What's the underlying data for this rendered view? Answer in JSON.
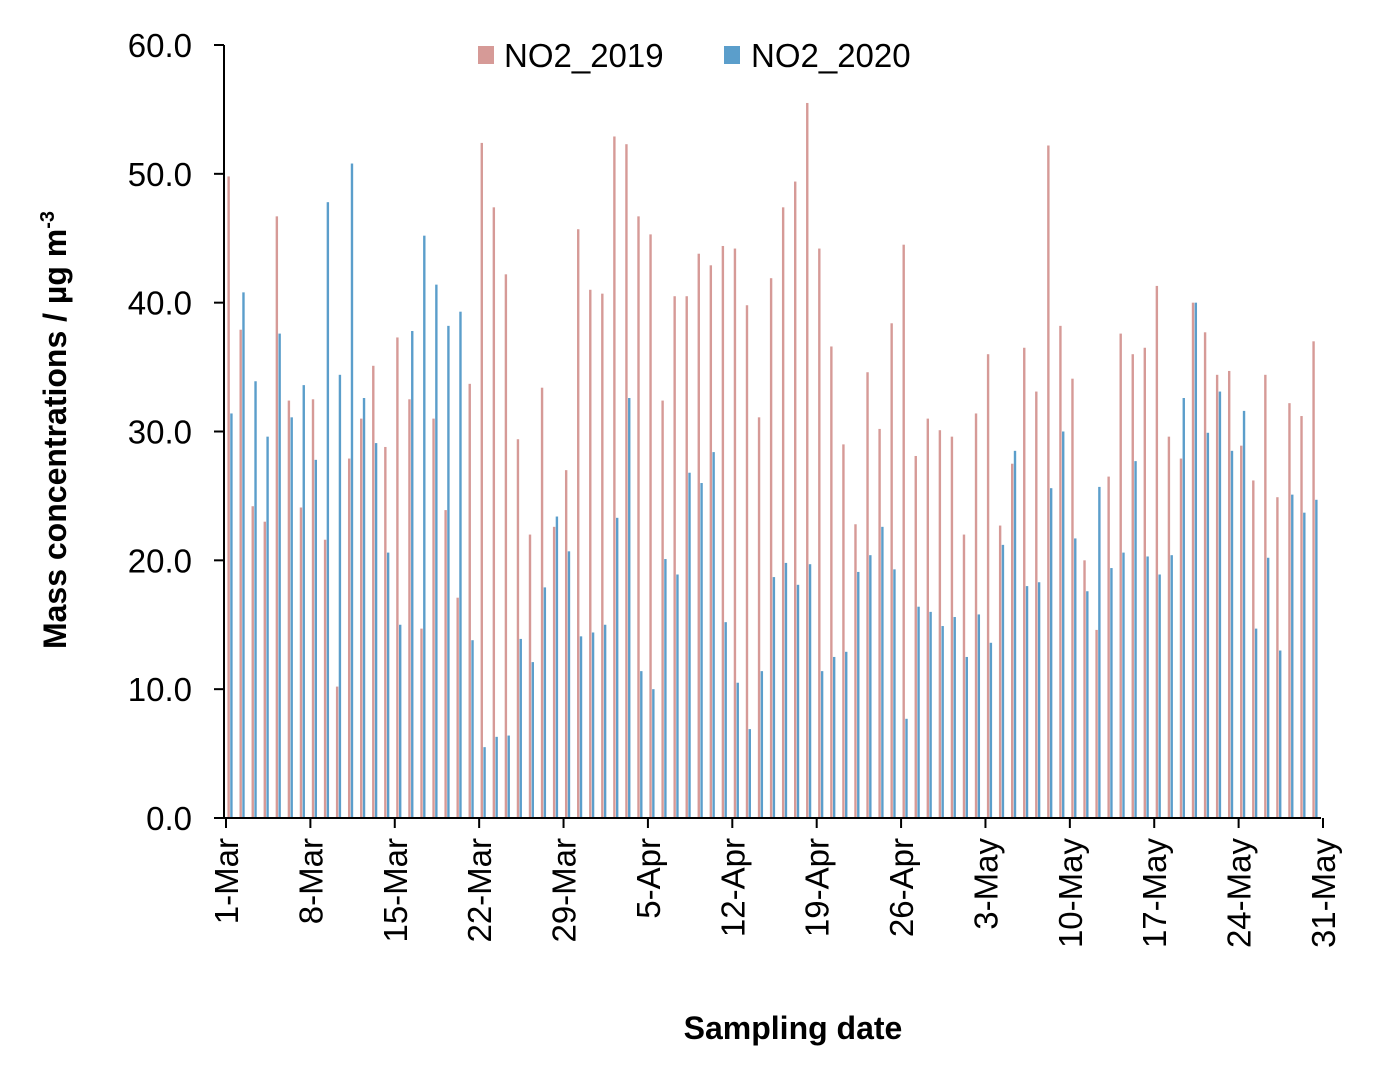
{
  "chart_data": {
    "type": "bar",
    "title": "",
    "xlabel": "Sampling date",
    "ylabel": "Mass concentrations / µg m",
    "ylabel_superscript": "-3",
    "ylim": [
      0,
      60
    ],
    "yticks": [
      "0.0",
      "10.0",
      "20.0",
      "30.0",
      "40.0",
      "50.0",
      "60.0"
    ],
    "grid": false,
    "legend": "top-center",
    "x_tick_labels": [
      {
        "index": 0,
        "label": "1-Mar"
      },
      {
        "index": 7,
        "label": "8-Mar"
      },
      {
        "index": 14,
        "label": "15-Mar"
      },
      {
        "index": 21,
        "label": "22-Mar"
      },
      {
        "index": 28,
        "label": "29-Mar"
      },
      {
        "index": 35,
        "label": "5-Apr"
      },
      {
        "index": 42,
        "label": "12-Apr"
      },
      {
        "index": 49,
        "label": "19-Apr"
      },
      {
        "index": 56,
        "label": "26-Apr"
      },
      {
        "index": 63,
        "label": "3-May"
      },
      {
        "index": 70,
        "label": "10-May"
      },
      {
        "index": 77,
        "label": "17-May"
      },
      {
        "index": 84,
        "label": "24-May"
      },
      {
        "index": 91,
        "label": "31-May"
      }
    ],
    "series": [
      {
        "name": "NO2_2019",
        "color": "#d69a97",
        "values": [
          49.8,
          37.9,
          24.2,
          23.0,
          46.7,
          32.4,
          24.1,
          32.5,
          21.6,
          10.2,
          27.9,
          31.0,
          35.1,
          28.8,
          37.3,
          32.5,
          14.7,
          31.0,
          23.9,
          17.1,
          33.7,
          52.4,
          47.4,
          42.2,
          29.4,
          22.0,
          33.4,
          22.6,
          27.0,
          45.7,
          41.0,
          40.7,
          52.9,
          52.3,
          46.7,
          45.3,
          32.4,
          40.5,
          40.5,
          43.8,
          42.9,
          44.4,
          44.2,
          39.8,
          31.1,
          41.9,
          47.4,
          49.4,
          55.5,
          44.2,
          36.6,
          29.0,
          22.8,
          34.6,
          30.2,
          38.4,
          44.5,
          28.1,
          31.0,
          30.1,
          29.6,
          22.0,
          31.4,
          36.0,
          22.7,
          27.5,
          36.5,
          33.1,
          52.2,
          38.2,
          34.1,
          20.0,
          14.6,
          26.5,
          37.6,
          36.0,
          36.5,
          41.3,
          29.6,
          27.9,
          40.0,
          37.7,
          34.4,
          34.7,
          28.9,
          26.2,
          34.4,
          24.9,
          32.2,
          31.2,
          37.0
        ]
      },
      {
        "name": "NO2_2020",
        "color": "#5b9ecb",
        "values": [
          31.4,
          40.8,
          33.9,
          29.6,
          37.6,
          31.1,
          33.6,
          27.8,
          47.8,
          34.4,
          50.8,
          32.6,
          29.1,
          20.6,
          15.0,
          37.8,
          45.2,
          41.4,
          38.2,
          39.3,
          13.8,
          5.5,
          6.3,
          6.4,
          13.9,
          12.1,
          17.9,
          23.4,
          20.7,
          14.1,
          14.4,
          15.0,
          23.3,
          32.6,
          11.4,
          10.0,
          20.1,
          18.9,
          26.8,
          26.0,
          28.4,
          15.2,
          10.5,
          6.9,
          11.4,
          18.7,
          19.8,
          18.1,
          19.7,
          11.4,
          12.5,
          12.9,
          19.1,
          20.4,
          22.6,
          19.3,
          7.7,
          16.4,
          16.0,
          14.9,
          15.6,
          12.5,
          15.8,
          13.6,
          21.2,
          28.5,
          18.0,
          18.3,
          25.6,
          30.0,
          21.7,
          17.6,
          25.7,
          19.4,
          20.6,
          27.7,
          20.3,
          18.9,
          20.4,
          32.6,
          40.0,
          29.9,
          33.1,
          28.5,
          31.6,
          14.7,
          20.2,
          13.0,
          25.1,
          23.7,
          24.7
        ]
      }
    ]
  }
}
